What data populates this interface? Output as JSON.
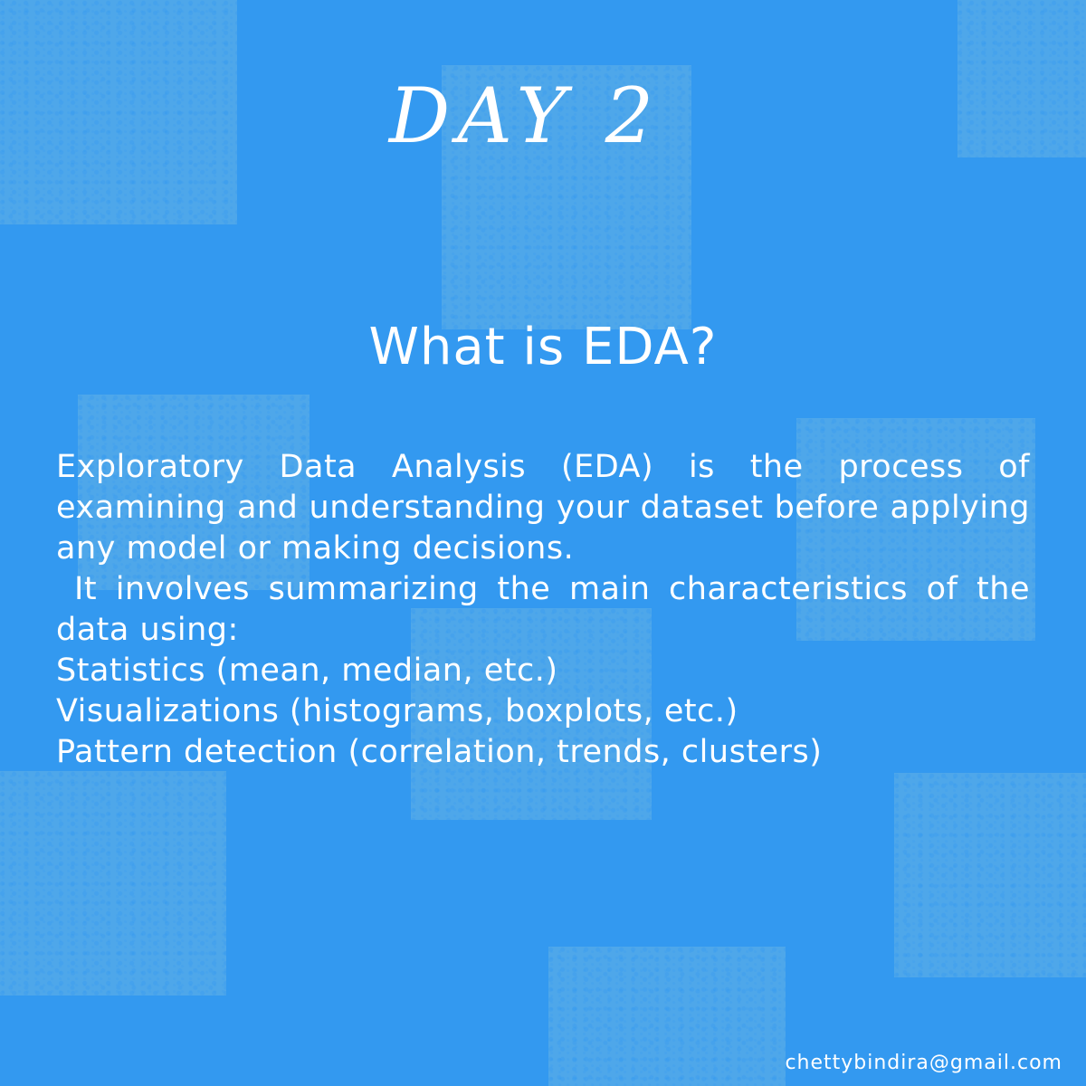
{
  "slide": {
    "day_title": "DAY 2",
    "heading": "What is EDA?",
    "paragraphs": [
      "Exploratory Data Analysis (EDA) is the process of examining and understanding your dataset before applying any model or making decisions.",
      "It involves summarizing the main characteristics of the data using:"
    ],
    "list_items": [
      "Statistics (mean, median, etc.)",
      "Visualizations (histograms, boxplots, etc.)",
      "Pattern detection (correlation, trends, clusters)"
    ],
    "email": "chettybindira@gmail.com"
  },
  "colors": {
    "background": "#3399f0",
    "texture_blocks": "#58ace9",
    "text": "#ffffff"
  }
}
